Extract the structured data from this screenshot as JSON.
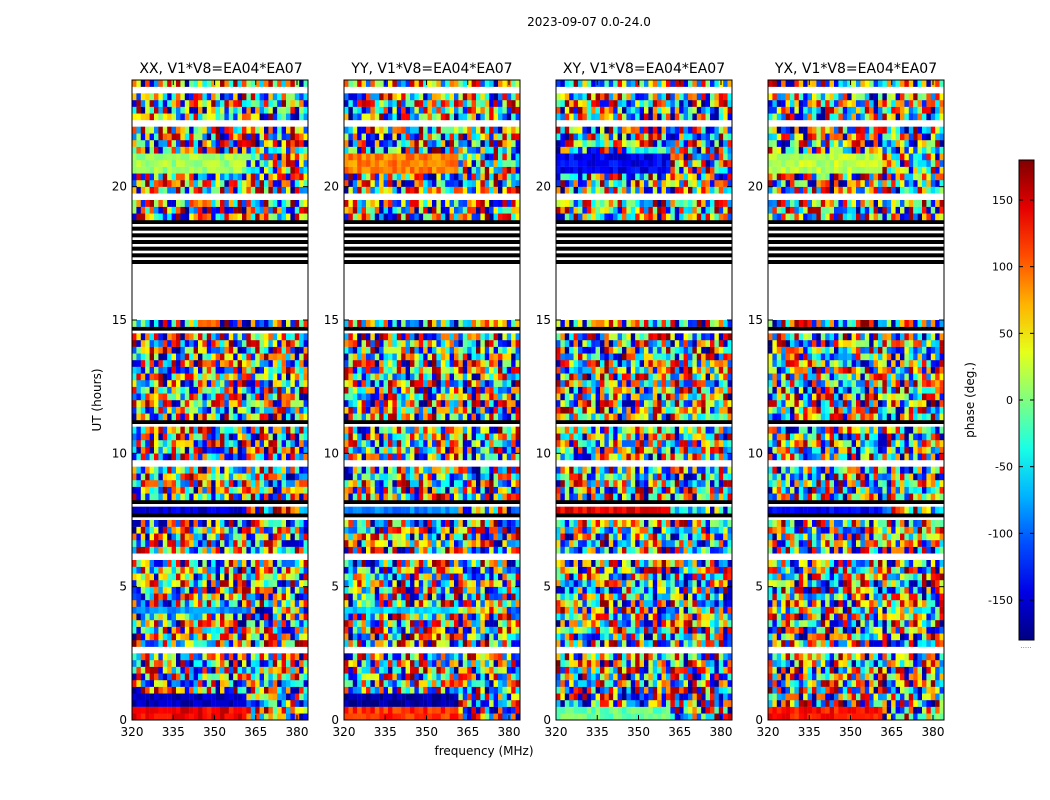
{
  "chart_data": {
    "type": "heatmap",
    "title": "2023-09-07 0.0-24.0",
    "xlabel": "frequency (MHz)",
    "ylabel": "UT (hours)",
    "xlim": [
      320,
      384
    ],
    "ylim": [
      0,
      24
    ],
    "x_ticks": [
      320,
      335,
      350,
      365,
      380
    ],
    "y_ticks": [
      0,
      5,
      10,
      15,
      20
    ],
    "colorbar": {
      "label": "phase (deg.)",
      "range": [
        -180,
        180
      ],
      "ticks": [
        -150,
        -100,
        -50,
        0,
        50,
        100,
        150
      ],
      "colormap": "jet",
      "underflow_label": "....."
    },
    "panels": [
      {
        "name": "XX",
        "title": "XX, V1*V8=EA04*EA07",
        "coherent_bands": [
          {
            "t0": 0.0,
            "t1": 0.6,
            "phase": 140,
            "f1": 362
          },
          {
            "t0": 0.6,
            "t1": 0.9,
            "phase": -160,
            "f1": 362
          },
          {
            "t0": 4.0,
            "t1": 4.3,
            "phase": -80,
            "f1": 362
          },
          {
            "t0": 7.4,
            "t1": 7.9,
            "phase": -150,
            "f1": 362
          },
          {
            "t0": 10.4,
            "t1": 10.6,
            "phase": -110,
            "f1": 362
          },
          {
            "t0": 14.9,
            "t1": 15.1,
            "phase": 40,
            "f1": 362
          },
          {
            "t0": 20.6,
            "t1": 21.2,
            "phase": 10,
            "f1": 362
          },
          {
            "t0": 23.4,
            "t1": 23.7,
            "phase": -40,
            "f1": 362
          }
        ]
      },
      {
        "name": "YY",
        "title": "YY, V1*V8=EA04*EA07",
        "coherent_bands": [
          {
            "t0": 0.0,
            "t1": 0.5,
            "phase": 120,
            "f1": 362
          },
          {
            "t0": 0.5,
            "t1": 0.9,
            "phase": -170,
            "f1": 362
          },
          {
            "t0": 4.0,
            "t1": 4.3,
            "phase": -60,
            "f1": 362
          },
          {
            "t0": 7.4,
            "t1": 7.9,
            "phase": -90,
            "f1": 362
          },
          {
            "t0": 10.4,
            "t1": 10.6,
            "phase": -110,
            "f1": 362
          },
          {
            "t0": 14.9,
            "t1": 15.1,
            "phase": 130,
            "f1": 362
          },
          {
            "t0": 20.6,
            "t1": 21.2,
            "phase": 90,
            "f1": 362
          },
          {
            "t0": 23.4,
            "t1": 23.7,
            "phase": 60,
            "f1": 362
          }
        ]
      },
      {
        "name": "XY",
        "title": "XY, V1*V8=EA04*EA07",
        "coherent_bands": [
          {
            "t0": 0.0,
            "t1": 0.6,
            "phase": -10,
            "f1": 362
          },
          {
            "t0": 7.4,
            "t1": 7.9,
            "phase": 140,
            "f1": 362
          },
          {
            "t0": 10.4,
            "t1": 10.6,
            "phase": 120,
            "f1": 362
          },
          {
            "t0": 20.6,
            "t1": 21.2,
            "phase": -140,
            "f1": 362
          },
          {
            "t0": 23.4,
            "t1": 23.7,
            "phase": -150,
            "f1": 362
          }
        ]
      },
      {
        "name": "YX",
        "title": "YX, V1*V8=EA04*EA07",
        "coherent_bands": [
          {
            "t0": 0.0,
            "t1": 0.6,
            "phase": 130,
            "f1": 362
          },
          {
            "t0": 7.4,
            "t1": 7.9,
            "phase": -140,
            "f1": 362
          },
          {
            "t0": 10.4,
            "t1": 10.6,
            "phase": -60,
            "f1": 362
          },
          {
            "t0": 20.6,
            "t1": 21.2,
            "phase": 20,
            "f1": 362
          },
          {
            "t0": 23.4,
            "t1": 23.7,
            "phase": -30,
            "f1": 362
          }
        ]
      }
    ],
    "flagged_ut_ranges": [
      [
        15.0,
        17.1
      ],
      [
        18.7,
        18.8
      ],
      [
        23.6,
        23.65
      ]
    ],
    "flagged_black_ut_ranges": [
      [
        17.1,
        18.7
      ],
      [
        18.9,
        19.0
      ]
    ]
  }
}
